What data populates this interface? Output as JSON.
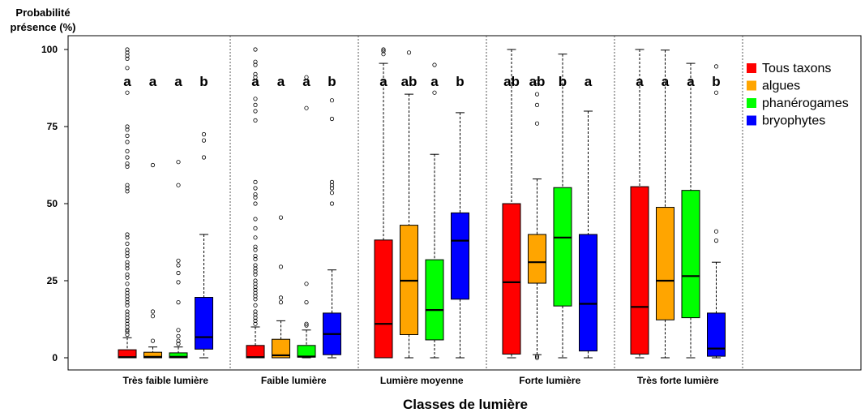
{
  "chart_data": {
    "type": "box",
    "ylabel_line1": "Probabilité",
    "ylabel_line2": "présence (%)",
    "xlabel": "Classes de lumière",
    "ylim": [
      0,
      100
    ],
    "yticks": [
      0,
      25,
      50,
      75,
      100
    ],
    "grid": false,
    "legend_position": "right",
    "categories": [
      "Très faible lumière",
      "Faible lumière",
      "Lumière moyenne",
      "Forte lumière",
      "Très forte lumière"
    ],
    "series": [
      {
        "name": "Tous taxons",
        "color": "#ff0000"
      },
      {
        "name": "algues",
        "color": "#ffa500"
      },
      {
        "name": "phanérogames",
        "color": "#00ff00"
      },
      {
        "name": "bryophytes",
        "color": "#0000ff"
      }
    ],
    "groups": [
      {
        "category": "Très faible lumière",
        "boxes": [
          {
            "series": "Tous taxons",
            "whisker_low": 0,
            "q1": 0,
            "median": 0.2,
            "q3": 2.6,
            "whisker_high": 6.5,
            "letter": "a",
            "outliers": [
              7.5,
              8.5,
              9,
              10,
              11,
              12,
              13,
              14,
              15,
              17,
              18,
              19,
              20,
              21,
              22,
              24,
              26,
              27,
              29,
              30,
              31,
              33,
              34,
              35,
              37,
              39,
              40,
              54,
              55,
              56,
              62,
              63,
              65,
              67,
              70,
              72,
              74,
              75,
              86,
              94,
              97,
              98,
              99,
              100
            ]
          },
          {
            "series": "algues",
            "whisker_low": 0,
            "q1": 0,
            "median": 0.3,
            "q3": 1.8,
            "whisker_high": 3.5,
            "letter": "a",
            "outliers": [
              5.5,
              13.5,
              15,
              62.5
            ]
          },
          {
            "series": "phanérogames",
            "whisker_low": 0,
            "q1": 0,
            "median": 0.3,
            "q3": 1.6,
            "whisker_high": 3.5,
            "letter": "a",
            "outliers": [
              4.5,
              5.5,
              7,
              9,
              18,
              24.5,
              27.5,
              30,
              31.5,
              56,
              63.5
            ]
          },
          {
            "series": "bryophytes",
            "whisker_low": 0,
            "q1": 2.8,
            "median": 6.7,
            "q3": 19.6,
            "whisker_high": 40,
            "letter": "b",
            "outliers": [
              65,
              70.5,
              72.5
            ]
          }
        ]
      },
      {
        "category": "Faible lumière",
        "boxes": [
          {
            "series": "Tous taxons",
            "whisker_low": 0,
            "q1": 0,
            "median": 0.2,
            "q3": 4,
            "whisker_high": 10,
            "letter": "a",
            "outliers": [
              11,
              12,
              13,
              14,
              15,
              17,
              19,
              20,
              21,
              22,
              23,
              24,
              25,
              27,
              28,
              29,
              30,
              32,
              33,
              35,
              36,
              39,
              42,
              45,
              50,
              52,
              53,
              55,
              57,
              77,
              80,
              82,
              84,
              89,
              91,
              92,
              95,
              96,
              100
            ]
          },
          {
            "series": "algues",
            "whisker_low": 0,
            "q1": 0,
            "median": 0.8,
            "q3": 6,
            "whisker_high": 12,
            "letter": "a",
            "outliers": [
              18,
              19.5,
              29.5,
              45.5
            ]
          },
          {
            "series": "phanérogames",
            "whisker_low": 0,
            "q1": 0.2,
            "median": 0.4,
            "q3": 4,
            "whisker_high": 9,
            "letter": "a",
            "outliers": [
              10.5,
              11,
              18,
              24,
              81,
              91
            ]
          },
          {
            "series": "bryophytes",
            "whisker_low": 0,
            "q1": 1,
            "median": 7.7,
            "q3": 14.5,
            "whisker_high": 28.5,
            "letter": "b",
            "outliers": [
              50,
              53.5,
              55,
              56,
              57,
              77.5,
              83.5
            ]
          }
        ]
      },
      {
        "category": "Lumière moyenne",
        "boxes": [
          {
            "series": "Tous taxons",
            "whisker_low": 0,
            "q1": 0,
            "median": 11,
            "q3": 38.2,
            "whisker_high": 95.5,
            "letter": "a",
            "outliers": [
              98.5,
              99.5,
              100
            ]
          },
          {
            "series": "algues",
            "whisker_low": 0,
            "q1": 7.5,
            "median": 25,
            "q3": 43,
            "whisker_high": 85.5,
            "letter": "ab",
            "outliers": [
              99
            ]
          },
          {
            "series": "phanérogames",
            "whisker_low": 0,
            "q1": 5.8,
            "median": 15.5,
            "q3": 31.8,
            "whisker_high": 66,
            "letter": "a",
            "outliers": [
              86,
              95
            ]
          },
          {
            "series": "bryophytes",
            "whisker_low": 0,
            "q1": 19,
            "median": 38,
            "q3": 47,
            "whisker_high": 79.5,
            "letter": "b",
            "outliers": []
          }
        ]
      },
      {
        "category": "Forte lumière",
        "boxes": [
          {
            "series": "Tous taxons",
            "whisker_low": 0,
            "q1": 1.2,
            "median": 24.5,
            "q3": 50,
            "whisker_high": 100,
            "letter": "ab",
            "outliers": []
          },
          {
            "series": "algues",
            "whisker_low": 1,
            "q1": 24.2,
            "median": 31,
            "q3": 40,
            "whisker_high": 58,
            "letter": "ab",
            "outliers": [
              0,
              0.5,
              76,
              82,
              85.5,
              89.5
            ]
          },
          {
            "series": "phanérogames",
            "whisker_low": 0,
            "q1": 16.8,
            "median": 39,
            "q3": 55.2,
            "whisker_high": 98.5,
            "letter": "b",
            "outliers": []
          },
          {
            "series": "bryophytes",
            "whisker_low": 0,
            "q1": 2.2,
            "median": 17.5,
            "q3": 40,
            "whisker_high": 80,
            "letter": "a",
            "outliers": []
          }
        ]
      },
      {
        "category": "Très forte lumière",
        "boxes": [
          {
            "series": "Tous taxons",
            "whisker_low": 0,
            "q1": 1.2,
            "median": 16.5,
            "q3": 55.5,
            "whisker_high": 100,
            "letter": "a",
            "outliers": []
          },
          {
            "series": "algues",
            "whisker_low": 0,
            "q1": 12.3,
            "median": 25,
            "q3": 48.8,
            "whisker_high": 99.8,
            "letter": "a",
            "outliers": []
          },
          {
            "series": "phanérogames",
            "whisker_low": 0,
            "q1": 13,
            "median": 26.5,
            "q3": 54.3,
            "whisker_high": 95.5,
            "letter": "a",
            "outliers": []
          },
          {
            "series": "bryophytes",
            "whisker_low": 0,
            "q1": 0.5,
            "median": 3,
            "q3": 14.5,
            "whisker_high": 31,
            "letter": "b",
            "outliers": [
              38,
              41,
              86,
              94.5
            ]
          }
        ]
      }
    ]
  }
}
